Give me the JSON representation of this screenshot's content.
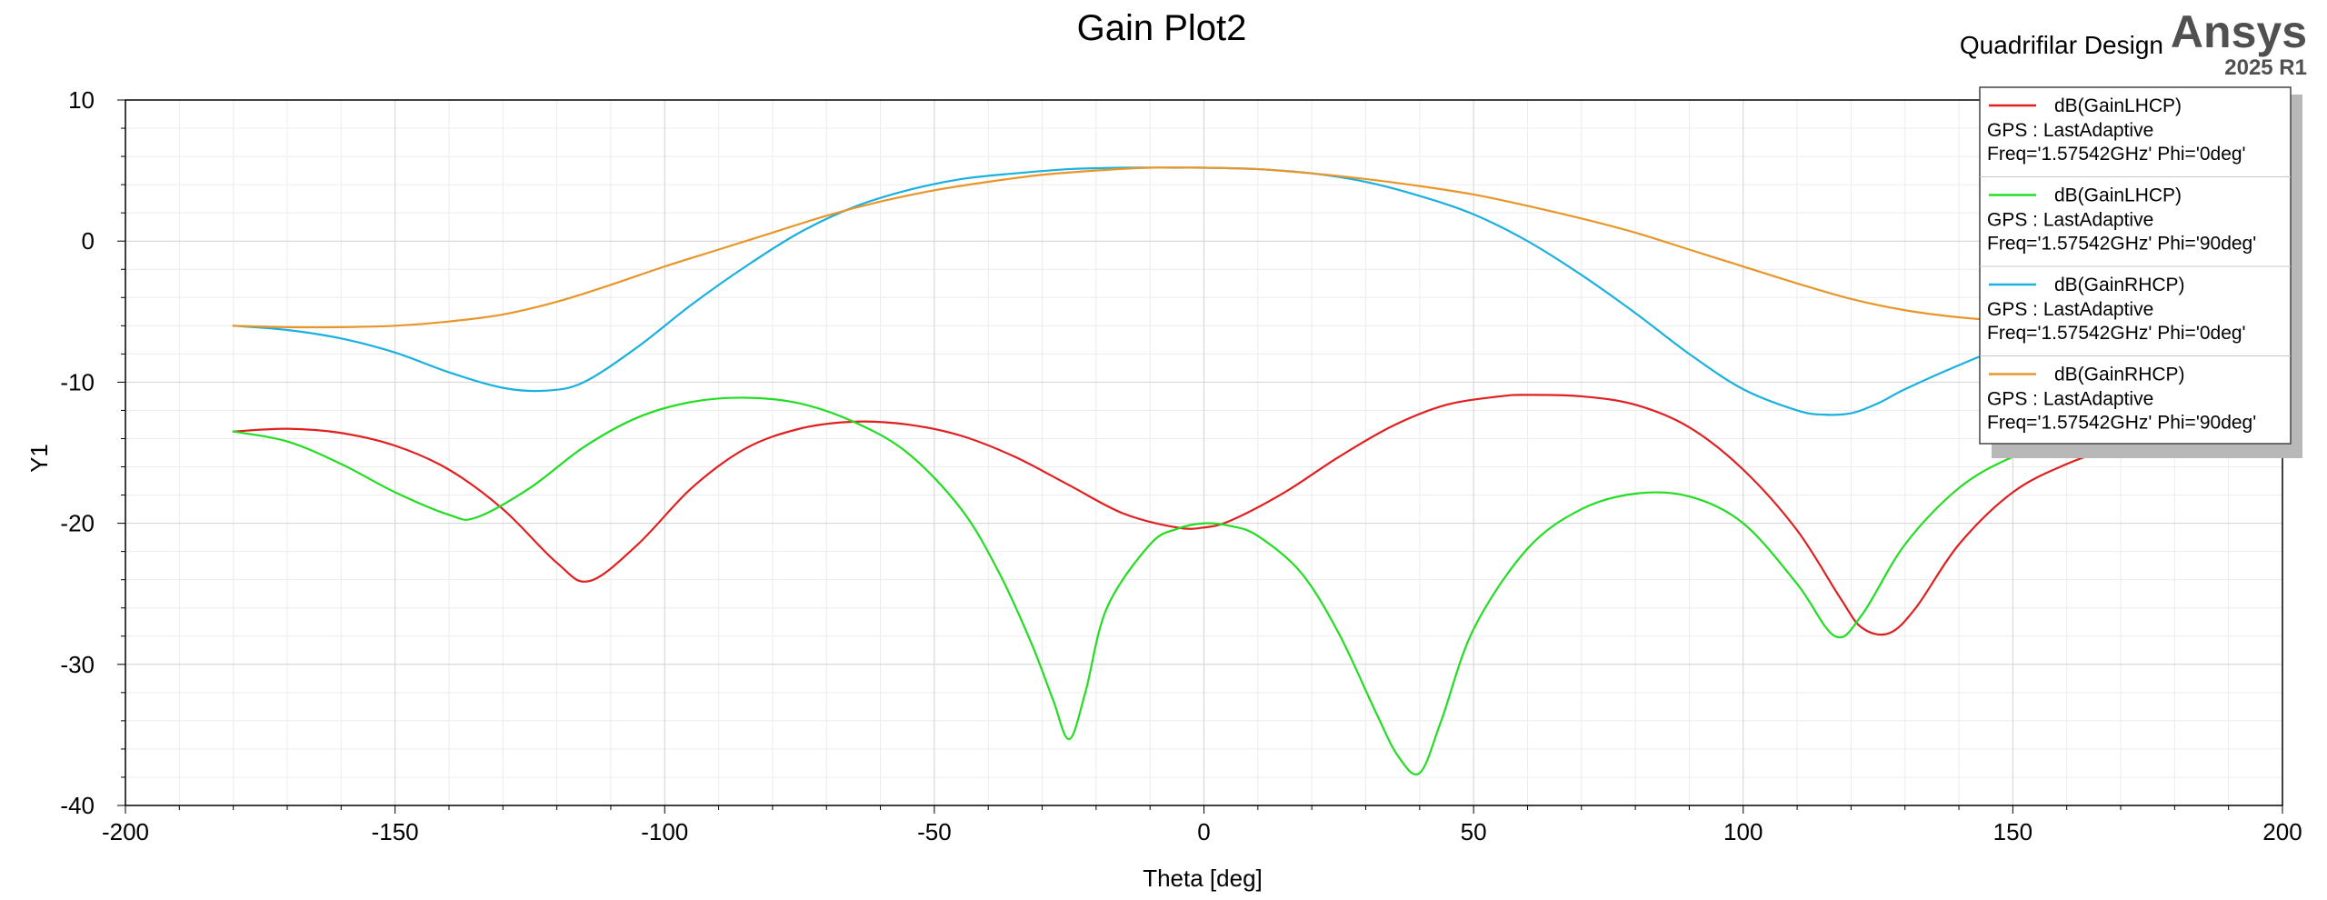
{
  "header": {
    "design_name": "Quadrifilar Design",
    "brand": "Ansys",
    "version": "2025 R1"
  },
  "chart_data": {
    "type": "line",
    "title": "Gain Plot2",
    "xlabel": "Theta [deg]",
    "ylabel": "Y1",
    "xlim": [
      -200,
      200
    ],
    "ylim": [
      -40,
      10
    ],
    "x_ticks": [
      "-200",
      "-150",
      "-100",
      "-50",
      "0",
      "50",
      "100",
      "150",
      "200"
    ],
    "y_ticks": [
      "10",
      "0",
      "-10",
      "-20",
      "-30",
      "-40"
    ],
    "grid": true,
    "legend_position": "top-right",
    "series": [
      {
        "name": "dB(GainLHCP)",
        "legend_lines": [
          "GPS : LastAdaptive",
          "Freq='1.57542GHz' Phi='0deg'"
        ],
        "color": "#e02020",
        "x": [
          -180,
          -170,
          -160,
          -150,
          -140,
          -130,
          -120,
          -114,
          -105,
          -95,
          -85,
          -75,
          -65,
          -55,
          -45,
          -35,
          -25,
          -15,
          -5,
          0,
          5,
          15,
          25,
          35,
          45,
          55,
          60,
          70,
          80,
          90,
          100,
          110,
          118,
          122,
          127,
          132,
          140,
          150,
          160,
          170,
          180
        ],
        "y": [
          -13.5,
          -13.3,
          -13.6,
          -14.5,
          -16.2,
          -19,
          -22.8,
          -24.1,
          -21.5,
          -17.5,
          -14.7,
          -13.3,
          -12.8,
          -13.0,
          -13.8,
          -15.3,
          -17.3,
          -19.3,
          -20.3,
          -20.3,
          -19.8,
          -17.8,
          -15.3,
          -13.1,
          -11.6,
          -11.0,
          -10.9,
          -11.0,
          -11.6,
          -13.2,
          -16.2,
          -20.5,
          -25.3,
          -27.4,
          -27.8,
          -26.0,
          -21.5,
          -17.8,
          -15.8,
          -14.5,
          -13.5
        ]
      },
      {
        "name": "dB(GainLHCP)",
        "legend_lines": [
          "GPS : LastAdaptive",
          "Freq='1.57542GHz' Phi='90deg'"
        ],
        "color": "#22dd22",
        "x": [
          -180,
          -170,
          -160,
          -150,
          -140,
          -135,
          -125,
          -115,
          -105,
          -95,
          -85,
          -75,
          -65,
          -55,
          -45,
          -38,
          -32,
          -28,
          -25,
          -22,
          -18,
          -10,
          -5,
          0,
          5,
          10,
          18,
          25,
          32,
          36,
          40,
          44,
          50,
          60,
          70,
          80,
          90,
          100,
          110,
          117,
          122,
          130,
          140,
          150,
          160,
          170,
          180
        ],
        "y": [
          -13.5,
          -14.2,
          -15.8,
          -17.8,
          -19.4,
          -19.6,
          -17.5,
          -14.6,
          -12.5,
          -11.4,
          -11.1,
          -11.5,
          -12.8,
          -15.0,
          -19.0,
          -23.5,
          -28.5,
          -32.5,
          -35.3,
          -32.0,
          -26.0,
          -21.5,
          -20.4,
          -20.0,
          -20.2,
          -20.9,
          -23.5,
          -27.8,
          -33.5,
          -36.5,
          -37.7,
          -34.0,
          -27.5,
          -21.8,
          -19.0,
          -17.9,
          -18.1,
          -20.0,
          -24.3,
          -28.0,
          -26.5,
          -21.5,
          -17.5,
          -15.3,
          -14.2,
          -13.7,
          -13.5
        ]
      },
      {
        "name": "dB(GainRHCP)",
        "legend_lines": [
          "GPS : LastAdaptive",
          "Freq='1.57542GHz' Phi='0deg'"
        ],
        "color": "#1ab0e0",
        "x": [
          -180,
          -170,
          -160,
          -150,
          -140,
          -130,
          -122,
          -115,
          -105,
          -95,
          -85,
          -75,
          -65,
          -55,
          -45,
          -35,
          -25,
          -15,
          -5,
          0,
          10,
          20,
          30,
          40,
          50,
          60,
          70,
          80,
          90,
          100,
          110,
          115,
          120,
          125,
          130,
          140,
          150,
          160,
          170,
          180
        ],
        "y": [
          -6.0,
          -6.3,
          -6.9,
          -7.9,
          -9.3,
          -10.4,
          -10.6,
          -10.0,
          -7.5,
          -4.5,
          -1.8,
          0.6,
          2.4,
          3.6,
          4.4,
          4.8,
          5.1,
          5.2,
          5.2,
          5.2,
          5.1,
          4.8,
          4.2,
          3.2,
          1.9,
          0.0,
          -2.4,
          -5.1,
          -8.0,
          -10.5,
          -12.0,
          -12.3,
          -12.2,
          -11.5,
          -10.5,
          -8.8,
          -7.3,
          -6.5,
          -6.1,
          -6.0
        ]
      },
      {
        "name": "dB(GainRHCP)",
        "legend_lines": [
          "GPS : LastAdaptive",
          "Freq='1.57542GHz' Phi='90deg'"
        ],
        "color": "#e8962a",
        "x": [
          -180,
          -170,
          -160,
          -150,
          -140,
          -130,
          -120,
          -110,
          -100,
          -90,
          -80,
          -70,
          -60,
          -50,
          -40,
          -30,
          -20,
          -10,
          0,
          10,
          20,
          30,
          40,
          50,
          60,
          70,
          80,
          90,
          100,
          110,
          120,
          130,
          140,
          150,
          160,
          170,
          180
        ],
        "y": [
          -6.0,
          -6.1,
          -6.1,
          -6.0,
          -5.7,
          -5.2,
          -4.3,
          -3.1,
          -1.8,
          -0.6,
          0.6,
          1.8,
          2.8,
          3.6,
          4.2,
          4.7,
          5.0,
          5.2,
          5.2,
          5.1,
          4.8,
          4.4,
          3.9,
          3.3,
          2.5,
          1.6,
          0.6,
          -0.6,
          -1.8,
          -3.0,
          -4.1,
          -4.9,
          -5.4,
          -5.7,
          -5.9,
          -6.0,
          -6.0
        ]
      }
    ]
  }
}
